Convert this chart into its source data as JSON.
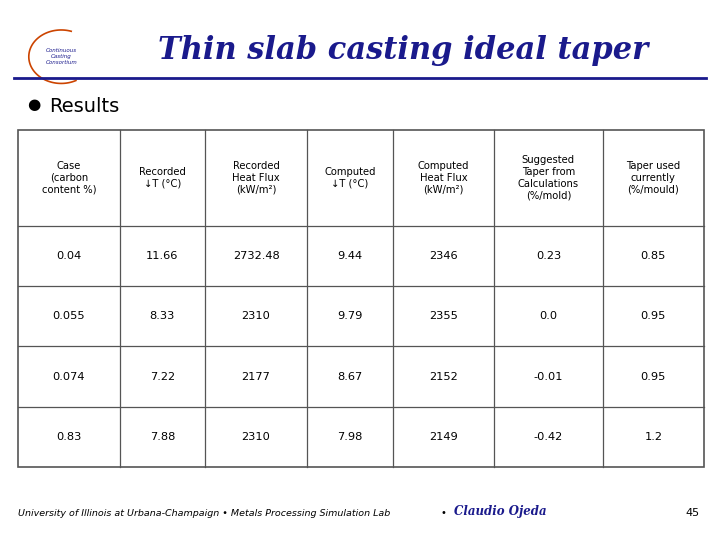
{
  "title": "Thin slab casting ideal taper",
  "title_color": "#1a1a8c",
  "title_fontsize": 22,
  "bg_color": "#ffffff",
  "bullet_text": "Results",
  "col_headers": [
    "Case\n(carbon\ncontent %)",
    "Recorded\n↓T (°C)",
    "Recorded\nHeat Flux\n(kW/m²)",
    "Computed\n↓T (°C)",
    "Computed\nHeat Flux\n(kW/m²)",
    "Suggested\nTaper from\nCalculations\n(%/mold)",
    "Taper used\ncurrently\n(%/mould)"
  ],
  "rows": [
    [
      "0.04",
      "11.66",
      "2732.48",
      "9.44",
      "2346",
      "0.23",
      "0.85"
    ],
    [
      "0.055",
      "8.33",
      "2310",
      "9.79",
      "2355",
      "0.0",
      "0.95"
    ],
    [
      "0.074",
      "7.22",
      "2177",
      "8.67",
      "2152",
      "-0.01",
      "0.95"
    ],
    [
      "0.83",
      "7.88",
      "2310",
      "7.98",
      "2149",
      "-0.42",
      "1.2"
    ]
  ],
  "footer_left": "University of Illinois at Urbana-Champaign • Metals Processing Simulation Lab",
  "footer_bullet": "•",
  "footer_bold": "Claudio Ojeda",
  "footer_page": "45",
  "footer_color": "#000000",
  "footer_bold_color": "#1a1a8c",
  "line_color": "#1a1a8c",
  "table_line_color": "#555555",
  "logo_arc_color": "#cc4400",
  "logo_text_color": "#1a1a8c"
}
